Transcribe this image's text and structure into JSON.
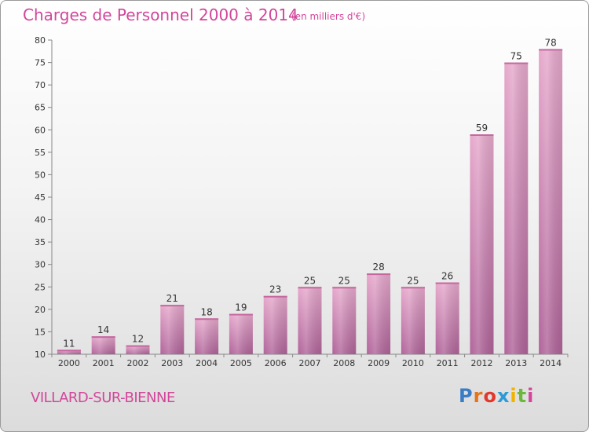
{
  "header": {
    "title": "Charges de Personnel 2000 à 2014",
    "subtitle": "(en milliers d'€)"
  },
  "footer": {
    "commune": "VILLARD-SUR-BIENNE",
    "logo_text": "Proxiti"
  },
  "colors": {
    "accent": "#d2469a",
    "bar_top": "#e6a9cc",
    "bar_bottom": "#b0649a"
  },
  "chart_data": {
    "type": "bar",
    "title": "Charges de Personnel 2000 à 2014",
    "subtitle": "(en milliers d'€)",
    "categories": [
      "2000",
      "2001",
      "2002",
      "2003",
      "2004",
      "2005",
      "2006",
      "2007",
      "2008",
      "2009",
      "2010",
      "2011",
      "2012",
      "2013",
      "2014"
    ],
    "values": [
      11,
      14,
      12,
      21,
      18,
      19,
      23,
      25,
      25,
      28,
      25,
      26,
      59,
      75,
      78
    ],
    "ylim": [
      10,
      80
    ],
    "yticks": [
      10,
      15,
      20,
      25,
      30,
      35,
      40,
      45,
      50,
      55,
      60,
      65,
      70,
      75,
      80
    ],
    "grid": false,
    "legend": "none"
  }
}
